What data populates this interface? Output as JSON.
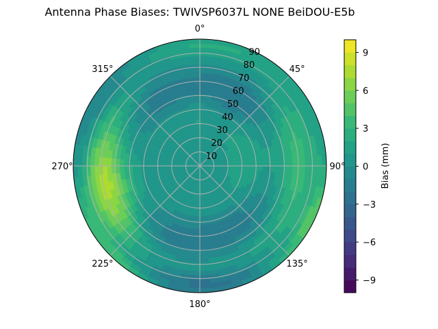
{
  "chart_data": {
    "type": "heatmap",
    "subtype": "polar-contour",
    "title": "Antenna Phase Biases: TWIVSP6037L     NONE BeiDOU-E5b",
    "radial_ticks": [
      "10",
      "20",
      "30",
      "40",
      "50",
      "60",
      "70",
      "80",
      "90"
    ],
    "radial_range": [
      0,
      90
    ],
    "angle_ticks": [
      {
        "angle": 0,
        "label": "0°"
      },
      {
        "angle": 45,
        "label": "45°"
      },
      {
        "angle": 90,
        "label": "90°"
      },
      {
        "angle": 135,
        "label": "135°"
      },
      {
        "angle": 180,
        "label": "180°"
      },
      {
        "angle": 225,
        "label": "225°"
      },
      {
        "angle": 270,
        "label": "270°"
      },
      {
        "angle": 315,
        "label": "315°"
      }
    ],
    "colorbar": {
      "label": "Bias (mm)",
      "range": [
        -10,
        10
      ],
      "ticks": [
        "9",
        "6",
        "3",
        "0",
        "−3",
        "−6",
        "−9"
      ],
      "tick_values": [
        9,
        6,
        3,
        0,
        -3,
        -6,
        -9
      ]
    },
    "grid": true,
    "colormap": [
      "#440154",
      "#482878",
      "#3e4989",
      "#31688e",
      "#26828e",
      "#1f9e89",
      "#35b779",
      "#6ece58",
      "#b5de2b",
      "#fde725"
    ],
    "field": {
      "base": 0.5,
      "features": [
        {
          "az": 90,
          "zen": 70,
          "value": 3.0,
          "az_width": 55,
          "zen_width": 14
        },
        {
          "az": 270,
          "zen": 70,
          "value": 4.5,
          "az_width": 45,
          "zen_width": 14
        },
        {
          "az": 250,
          "zen": 65,
          "value": 3.5,
          "az_width": 30,
          "zen_width": 18
        },
        {
          "az": 30,
          "zen": 55,
          "value": -3.0,
          "az_width": 30,
          "zen_width": 20
        },
        {
          "az": 330,
          "zen": 55,
          "value": -2.5,
          "az_width": 35,
          "zen_width": 18
        },
        {
          "az": 150,
          "zen": 50,
          "value": -2.5,
          "az_width": 40,
          "zen_width": 15
        },
        {
          "az": 210,
          "zen": 55,
          "value": -2.0,
          "az_width": 35,
          "zen_width": 15
        },
        {
          "az": 180,
          "zen": 85,
          "value": -3.0,
          "az_width": 40,
          "zen_width": 8
        },
        {
          "az": 0,
          "zen": 85,
          "value": 2.0,
          "az_width": 50,
          "zen_width": 8
        },
        {
          "az": 120,
          "zen": 88,
          "value": 4.0,
          "az_width": 25,
          "zen_width": 6
        },
        {
          "az": 225,
          "zen": 88,
          "value": 3.5,
          "az_width": 25,
          "zen_width": 6
        },
        {
          "az": 300,
          "zen": 85,
          "value": -2.5,
          "az_width": 40,
          "zen_width": 10
        },
        {
          "az": 0,
          "zen": 0,
          "value": 0.5,
          "az_width": 360,
          "zen_width": 15
        },
        {
          "az": 90,
          "zen": 35,
          "value": 1.0,
          "az_width": 80,
          "zen_width": 15
        },
        {
          "az": 0,
          "zen": 40,
          "value": 1.0,
          "az_width": 60,
          "zen_width": 15
        }
      ]
    }
  }
}
